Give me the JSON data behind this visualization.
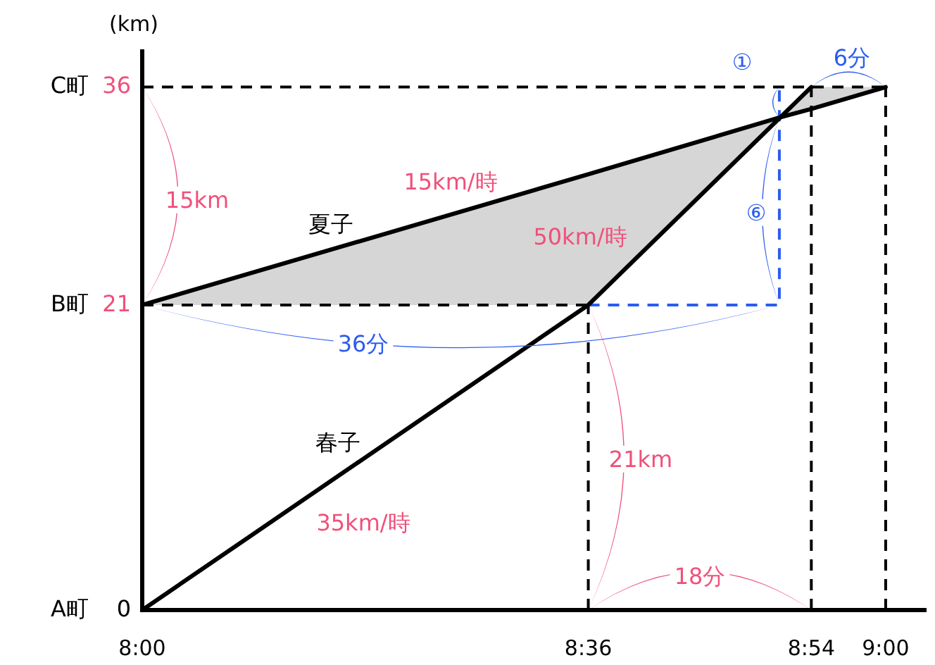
{
  "chart_data": {
    "type": "line",
    "xlim": [
      8,
      9.055
    ],
    "ylim": [
      0,
      38.6
    ],
    "xticks": [
      {
        "value": 8,
        "label": "8:00"
      },
      {
        "value": 8.6,
        "label": "8:36"
      },
      {
        "value": 8.9,
        "label": "8:54"
      },
      {
        "value": 9,
        "label": "9:00"
      }
    ],
    "yticks": [
      0,
      21,
      36
    ],
    "ylabel": "(km)",
    "grid": false,
    "marker": "none",
    "series": [
      {
        "name": "春子",
        "color": "#000000",
        "x": [
          8,
          8.6,
          8.9
        ],
        "values": [
          0,
          21,
          36
        ]
      },
      {
        "name": "夏子",
        "color": "#000000",
        "x": [
          8,
          8.6,
          8.857,
          8.9,
          9
        ],
        "values": [
          21,
          30,
          33.9,
          34.5,
          36
        ],
        "lower": [
          21,
          21,
          33.9,
          34.5,
          36
        ],
        "upper": [
          21,
          30,
          33.9,
          36,
          36
        ]
      },
      {
        "type": "line",
        "line_style": "dashed",
        "color": "#000000",
        "x": [
          8,
          9
        ],
        "values": [
          36,
          36
        ]
      },
      {
        "type": "line",
        "line_style": "dashed",
        "color": "#000000",
        "x": [
          8,
          8.6
        ],
        "values": [
          21,
          21
        ]
      },
      {
        "type": "line",
        "line_style": "dashed",
        "color": "#000000",
        "x": [
          8.6,
          8.6
        ],
        "values": [
          0,
          21
        ]
      },
      {
        "type": "line",
        "line_style": "dashed",
        "color": "#000000",
        "x": [
          8.9,
          8.9
        ],
        "values": [
          0,
          36
        ]
      },
      {
        "type": "line",
        "line_style": "dashed",
        "color": "#000000",
        "x": [
          9,
          9
        ],
        "values": [
          0,
          36
        ]
      },
      {
        "type": "line",
        "line_style": "dashed",
        "color": "#2a5cf0",
        "x": [
          8.6,
          8.857,
          8.857
        ],
        "values": [
          21,
          21,
          36
        ]
      }
    ],
    "annotations": [
      "15km/時",
      "50km/時",
      "35km/時",
      "15km",
      "36分",
      "21km",
      "18分",
      "①",
      "⑥",
      "6分",
      "A町",
      "B町",
      "C町"
    ]
  }
}
